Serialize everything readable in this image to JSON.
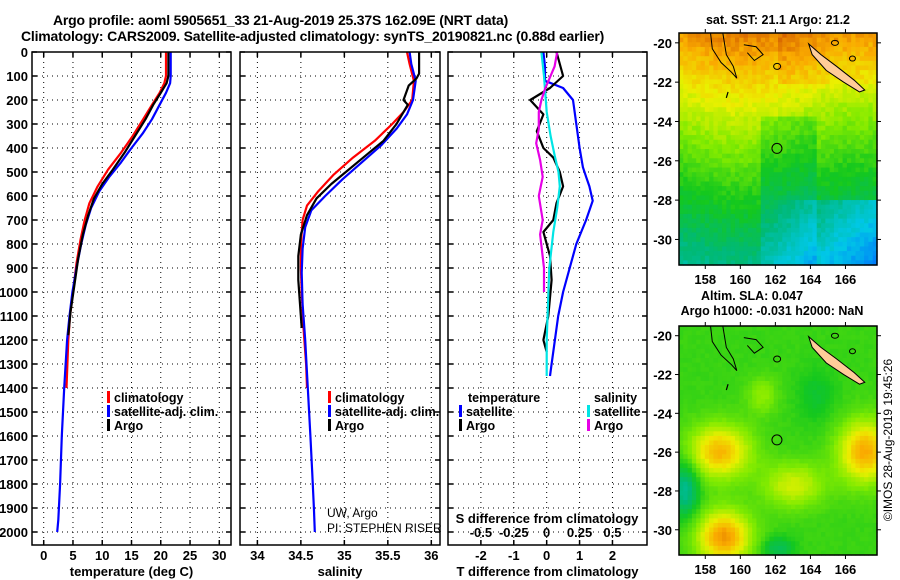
{
  "title_line1": "Argo profile: aoml 5905651_33 21-Aug-2019 25.37S 162.09E (NRT data)",
  "title_line2": "Climatology: CARS2009. Satellite-adjusted climatology: synTS_20190821.nc (0.88d earlier)",
  "copyright": "©IMOS 28-Aug-2019 19:45:26",
  "colors": {
    "climatology": "#ff0000",
    "satellite_adj": "#0000ff",
    "argo": "#000000",
    "sal_satellite": "#00e5e5",
    "sal_argo": "#e600e6"
  },
  "chart_data": [
    {
      "type": "line",
      "name": "temperature-profile",
      "xlabel": "temperature (deg C)",
      "ylabel": "",
      "xlim": [
        -2,
        32
      ],
      "ylim": [
        2054,
        0
      ],
      "xticks": [
        0,
        5,
        10,
        15,
        20,
        25,
        30
      ],
      "yticks": [
        0,
        100,
        200,
        300,
        400,
        500,
        600,
        700,
        800,
        900,
        1000,
        1100,
        1200,
        1300,
        1400,
        1500,
        1600,
        1700,
        1800,
        1900,
        2000
      ],
      "grid": true,
      "legend": [
        "climatology",
        "satellite-adj. clim.",
        "Argo"
      ],
      "legend_placement": "center-right",
      "series": [
        {
          "name": "climatology",
          "color_key": "climatology",
          "x": [
            20.9,
            20.9,
            20.6,
            19.8,
            18.5,
            17.0,
            15.2,
            13.2,
            11.0,
            9.2,
            7.8,
            7.0,
            6.3,
            5.6,
            5.0,
            4.5,
            4.2,
            3.9
          ],
          "y": [
            0,
            100,
            130,
            170,
            220,
            280,
            350,
            420,
            490,
            560,
            630,
            700,
            780,
            880,
            1000,
            1100,
            1200,
            1400
          ]
        },
        {
          "name": "satellite-adj. clim.",
          "color_key": "satellite_adj",
          "x": [
            21.7,
            21.7,
            21.6,
            20.9,
            19.8,
            18.5,
            16.9,
            15.0,
            13.2,
            11.2,
            9.5,
            8.1,
            7.2,
            6.4,
            5.6,
            4.9,
            4.4,
            4.0,
            3.5,
            3.1,
            2.8,
            2.5,
            2.3
          ],
          "y": [
            0,
            100,
            130,
            170,
            220,
            280,
            340,
            400,
            460,
            520,
            580,
            650,
            720,
            800,
            900,
            1000,
            1100,
            1200,
            1400,
            1600,
            1800,
            1950,
            2000
          ]
        },
        {
          "name": "Argo",
          "color_key": "argo",
          "x": [
            21.3,
            21.3,
            21.0,
            20.0,
            18.7,
            17.4,
            15.6,
            13.8,
            11.8,
            10.0,
            8.6,
            7.6,
            6.7,
            5.9,
            5.2,
            4.6,
            4.2
          ],
          "y": [
            0,
            100,
            130,
            170,
            220,
            280,
            350,
            420,
            490,
            550,
            610,
            680,
            760,
            860,
            980,
            1080,
            1180
          ]
        }
      ]
    },
    {
      "type": "line",
      "name": "salinity-profile",
      "xlabel": "salinity",
      "xlim": [
        33.8,
        36.1
      ],
      "ylim": [
        2054,
        0
      ],
      "xticks": [
        34,
        34.5,
        35,
        35.5,
        36
      ],
      "xtick_labels": [
        "34",
        "34.5",
        "35",
        "35.5",
        "36"
      ],
      "grid": true,
      "legend": [
        "climatology",
        "satellite-adj. clim.",
        "Argo"
      ],
      "legend_placement": "center-right",
      "annotation": [
        "UW, Argo",
        "PI: STEPHEN RISER"
      ],
      "series": [
        {
          "name": "climatology",
          "color_key": "climatology",
          "x": [
            35.72,
            35.75,
            35.8,
            35.78,
            35.68,
            35.55,
            35.35,
            35.1,
            34.88,
            34.7,
            34.57,
            34.52,
            34.5,
            34.5,
            34.51,
            34.53,
            34.56,
            34.57
          ],
          "y": [
            0,
            50,
            120,
            200,
            250,
            300,
            370,
            440,
            510,
            580,
            640,
            700,
            800,
            900,
            1000,
            1150,
            1300,
            1400
          ]
        },
        {
          "name": "satellite-adj. clim.",
          "color_key": "satellite_adj",
          "x": [
            35.75,
            35.77,
            35.82,
            35.79,
            35.72,
            35.6,
            35.42,
            35.2,
            34.98,
            34.78,
            34.62,
            34.55,
            34.52,
            34.51,
            34.52,
            34.55,
            34.58,
            34.61,
            34.63,
            34.65,
            34.66
          ],
          "y": [
            0,
            50,
            120,
            200,
            260,
            320,
            390,
            460,
            530,
            600,
            660,
            730,
            820,
            920,
            1050,
            1200,
            1400,
            1600,
            1750,
            1900,
            2000
          ]
        },
        {
          "name": "Argo",
          "color_key": "argo",
          "x": [
            35.86,
            35.86,
            35.83,
            35.74,
            35.68,
            35.73,
            35.6,
            35.45,
            35.25,
            35.05,
            34.85,
            34.68,
            34.57,
            34.5,
            34.47,
            34.47,
            34.49,
            34.51
          ],
          "y": [
            0,
            90,
            110,
            140,
            200,
            220,
            300,
            370,
            430,
            490,
            550,
            610,
            680,
            760,
            850,
            950,
            1050,
            1150
          ]
        }
      ]
    },
    {
      "type": "line",
      "name": "difference-profile",
      "xlabel": "T difference from climatology",
      "xlabel_top": "S difference from climatology",
      "xlim": [
        -3,
        3.05
      ],
      "ylim": [
        2054,
        0
      ],
      "xticks": [
        -2,
        -1,
        0,
        1,
        2
      ],
      "secondary_xticks": [
        -0.5,
        -0.25,
        0,
        0.25,
        0.5
      ],
      "secondary_xtick_labels": [
        "-0.5",
        "-0.25",
        "0",
        "0.25",
        "0.5"
      ],
      "grid": true,
      "legend_temperature_title": "temperature",
      "legend_salinity_title": "salinity",
      "legend": [
        "satellite",
        "Argo",
        "satellite",
        "Argo"
      ],
      "series": [
        {
          "name": "temperature satellite",
          "color_key": "satellite_adj",
          "axis": "T",
          "x": [
            -0.1,
            -0.05,
            -0.05,
            0.5,
            0.8,
            0.9,
            1.0,
            1.1,
            1.2,
            1.3,
            1.4,
            1.2,
            0.9,
            0.7,
            0.5,
            0.35,
            0.25,
            0.15,
            0.1
          ],
          "y": [
            0,
            60,
            120,
            150,
            200,
            300,
            400,
            480,
            520,
            560,
            620,
            700,
            800,
            900,
            1000,
            1100,
            1200,
            1300,
            1350
          ]
        },
        {
          "name": "temperature Argo",
          "color_key": "argo",
          "axis": "T",
          "x": [
            0.3,
            0.5,
            0.1,
            -0.5,
            -0.1,
            -0.3,
            -0.1,
            0.2,
            0.4,
            0.5,
            0.3,
            0.2,
            -0.1,
            0.1,
            0.15,
            0.05,
            -0.1,
            0.0
          ],
          "y": [
            0,
            100,
            150,
            200,
            260,
            330,
            400,
            440,
            500,
            560,
            630,
            700,
            750,
            850,
            950,
            1100,
            1200,
            1250
          ]
        },
        {
          "name": "salinity satellite",
          "color_key": "sal_satellite",
          "axis": "S",
          "x": [
            -0.04,
            -0.02,
            0.0,
            0.03,
            0.06,
            0.09,
            0.1,
            0.08,
            0.05,
            0.02,
            0.01,
            0.0,
            0.0
          ],
          "y": [
            0,
            100,
            250,
            350,
            430,
            500,
            560,
            650,
            750,
            900,
            1050,
            1200,
            1350
          ]
        },
        {
          "name": "salinity Argo",
          "color_key": "sal_argo",
          "axis": "S",
          "x": [
            0.08,
            0.06,
            -0.01,
            -0.04,
            -0.06,
            -0.06,
            -0.08,
            -0.05,
            -0.03,
            -0.06,
            -0.03,
            -0.05,
            -0.02,
            -0.02
          ],
          "y": [
            0,
            60,
            150,
            200,
            250,
            320,
            380,
            450,
            520,
            600,
            700,
            760,
            900,
            1000
          ]
        }
      ]
    },
    {
      "type": "heatmap",
      "name": "sst-map",
      "title": "sat. SST: 21.1 Argo: 21.2",
      "xlim": [
        156.5,
        167.8
      ],
      "ylim": [
        -31.3,
        -19.5
      ],
      "xticks": [
        158,
        160,
        162,
        164,
        166
      ],
      "yticks": [
        -20,
        -22,
        -24,
        -26,
        -28,
        -30
      ],
      "float_position": {
        "lon": 162.09,
        "lat": -25.37
      }
    },
    {
      "type": "heatmap",
      "name": "sla-map",
      "title": "Altim. SLA: 0.047",
      "subtitle": "Argo h1000: -0.031 h2000: NaN",
      "xlim": [
        156.5,
        167.8
      ],
      "ylim": [
        -31.3,
        -19.5
      ],
      "xticks": [
        158,
        160,
        162,
        164,
        166
      ],
      "yticks": [
        -20,
        -22,
        -24,
        -26,
        -28,
        -30
      ],
      "float_position": {
        "lon": 162.09,
        "lat": -25.37
      }
    }
  ]
}
